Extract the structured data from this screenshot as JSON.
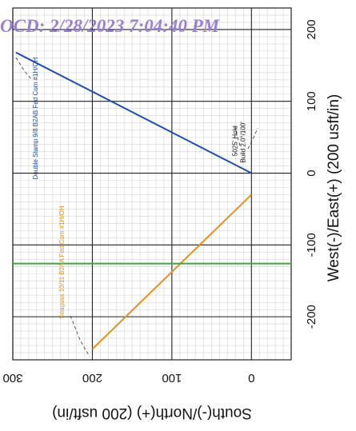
{
  "stamp": {
    "text": "OCD: 2/28/2023 7:04:40 PM",
    "color": "#9b7fd6"
  },
  "chart_data": {
    "type": "line",
    "x_axis": {
      "title": "South(-)/North(+) (200 usft/in)",
      "range": [
        -50,
        300
      ],
      "tick_values": [
        0,
        100,
        200,
        300
      ],
      "tick_labels": [
        "0",
        "100",
        "200",
        "300"
      ],
      "reversed": true,
      "position": "bottom"
    },
    "y_axis": {
      "title": "West(-)/East(+) (200 usft/in)",
      "range": [
        -260,
        230
      ],
      "tick_values": [
        -200,
        -100,
        0,
        100,
        200
      ],
      "tick_labels": [
        "-200",
        "-100",
        "0",
        "100",
        "200"
      ],
      "position": "right"
    },
    "grid": true,
    "series": [
      {
        "name": "Double Stamp 9/8 B2AB Fed Com #1H/OH",
        "color": "#1f4fb0",
        "x": [
          0,
          296
        ],
        "y": [
          0,
          168
        ]
      },
      {
        "name": "Seaguss 10/11 B2AA Fed Com #1H/OH",
        "color": "#e8901e",
        "x": [
          0,
          200
        ],
        "y": [
          -30,
          -245
        ]
      },
      {
        "name": "",
        "color": "#3aa83a",
        "x": [
          -50,
          300
        ],
        "y": [
          -126,
          -126
        ]
      }
    ],
    "annotations": [
      {
        "text": "5025' Hold",
        "x": 20,
        "y": 45
      },
      {
        "text": "Build 2.0°/100'",
        "x": 10,
        "y": 43
      }
    ]
  }
}
